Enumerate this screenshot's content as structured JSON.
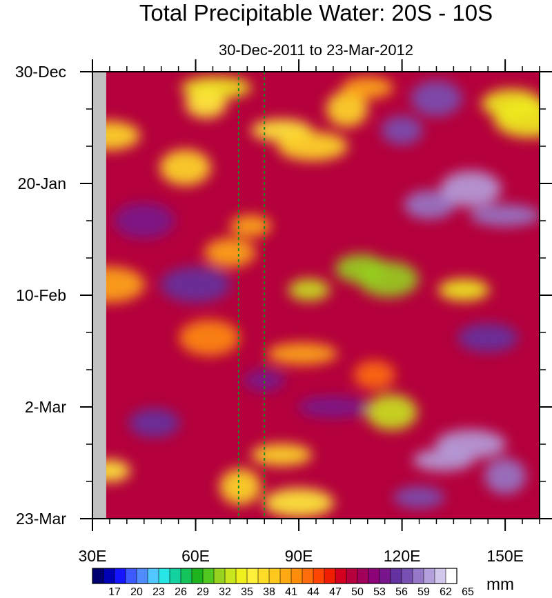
{
  "chart_data": {
    "type": "heatmap",
    "title": "Total Precipitable Water: 20S - 10S",
    "subtitle": "30-Dec-2011 to 23-Mar-2012",
    "xlabel": "",
    "ylabel": "",
    "x_range": [
      30,
      160
    ],
    "x_ticks": [
      {
        "value": 30,
        "label": "30E"
      },
      {
        "value": 60,
        "label": "60E"
      },
      {
        "value": 90,
        "label": "90E"
      },
      {
        "value": 120,
        "label": "120E"
      },
      {
        "value": 150,
        "label": "150E"
      }
    ],
    "x_minor_step": 5,
    "y_range_days": [
      0,
      84
    ],
    "y_ticks": [
      {
        "value": 0,
        "label": "30-Dec"
      },
      {
        "value": 21,
        "label": "20-Jan"
      },
      {
        "value": 42,
        "label": "10-Feb"
      },
      {
        "value": 63,
        "label": "2-Mar"
      },
      {
        "value": 84,
        "label": "23-Mar"
      }
    ],
    "y_minor_step": 7,
    "missing_band_lon": [
      30,
      34
    ],
    "reference_lines_lon": [
      72.5,
      80
    ],
    "reference_line_color": "#1f8a1f",
    "colorbar": {
      "units": "mm",
      "labels": [
        "17",
        "20",
        "23",
        "26",
        "29",
        "32",
        "35",
        "38",
        "41",
        "44",
        "47",
        "50",
        "53",
        "56",
        "59",
        "62",
        "65"
      ],
      "colors": [
        "#000070",
        "#0000b4",
        "#1414ff",
        "#3c5aff",
        "#508cff",
        "#50c8ff",
        "#28e6e6",
        "#14d2a0",
        "#14c35a",
        "#1eb41e",
        "#50c81e",
        "#96d21e",
        "#c8e61e",
        "#f0f01e",
        "#fff03c",
        "#ffdc28",
        "#ffc81e",
        "#ffaa14",
        "#ff8c0a",
        "#ff6e0a",
        "#ff4600",
        "#f01e00",
        "#d2001e",
        "#b4003c",
        "#a0005a",
        "#8c0078",
        "#78148c",
        "#6432a0",
        "#7850b4",
        "#9678c8",
        "#b4a0dc",
        "#d2c8ee",
        "#ffffff"
      ]
    },
    "base_value_mm": 52,
    "features": [
      {
        "lon": 93,
        "day": 41,
        "value_mm": 35
      },
      {
        "lon": 108,
        "day": 37,
        "value_mm": 33
      },
      {
        "lon": 116,
        "day": 39,
        "value_mm": 34
      },
      {
        "lon": 66,
        "day": 3,
        "value_mm": 36
      },
      {
        "lon": 63,
        "day": 6,
        "value_mm": 38
      },
      {
        "lon": 57,
        "day": 18,
        "value_mm": 40
      },
      {
        "lon": 85,
        "day": 11,
        "value_mm": 38
      },
      {
        "lon": 94,
        "day": 14,
        "value_mm": 40
      },
      {
        "lon": 104,
        "day": 7,
        "value_mm": 40
      },
      {
        "lon": 110,
        "day": 3,
        "value_mm": 43
      },
      {
        "lon": 152,
        "day": 6,
        "value_mm": 36
      },
      {
        "lon": 157,
        "day": 9,
        "value_mm": 36
      },
      {
        "lon": 76,
        "day": 29,
        "value_mm": 42
      },
      {
        "lon": 70,
        "day": 34,
        "value_mm": 42
      },
      {
        "lon": 64,
        "day": 50,
        "value_mm": 44
      },
      {
        "lon": 91,
        "day": 53,
        "value_mm": 42
      },
      {
        "lon": 112,
        "day": 57,
        "value_mm": 46
      },
      {
        "lon": 117,
        "day": 64,
        "value_mm": 35
      },
      {
        "lon": 85,
        "day": 72,
        "value_mm": 40
      },
      {
        "lon": 90,
        "day": 81,
        "value_mm": 38
      },
      {
        "lon": 73,
        "day": 78,
        "value_mm": 40
      },
      {
        "lon": 138,
        "day": 41,
        "value_mm": 36
      },
      {
        "lon": 35,
        "day": 12,
        "value_mm": 40
      },
      {
        "lon": 35,
        "day": 40,
        "value_mm": 42
      },
      {
        "lon": 35,
        "day": 75,
        "value_mm": 38
      },
      {
        "lon": 128,
        "day": 25,
        "value_mm": 61
      },
      {
        "lon": 140,
        "day": 22,
        "value_mm": 63
      },
      {
        "lon": 150,
        "day": 27,
        "value_mm": 61
      },
      {
        "lon": 120,
        "day": 11,
        "value_mm": 59
      },
      {
        "lon": 130,
        "day": 5,
        "value_mm": 59
      },
      {
        "lon": 132,
        "day": 73,
        "value_mm": 63
      },
      {
        "lon": 140,
        "day": 70,
        "value_mm": 62
      },
      {
        "lon": 150,
        "day": 76,
        "value_mm": 61
      },
      {
        "lon": 125,
        "day": 80,
        "value_mm": 60
      },
      {
        "lon": 145,
        "day": 50,
        "value_mm": 58
      },
      {
        "lon": 60,
        "day": 40,
        "value_mm": 58
      },
      {
        "lon": 80,
        "day": 58,
        "value_mm": 57
      },
      {
        "lon": 48,
        "day": 66,
        "value_mm": 58
      },
      {
        "lon": 45,
        "day": 28,
        "value_mm": 57
      },
      {
        "lon": 100,
        "day": 63,
        "value_mm": 57
      }
    ]
  }
}
